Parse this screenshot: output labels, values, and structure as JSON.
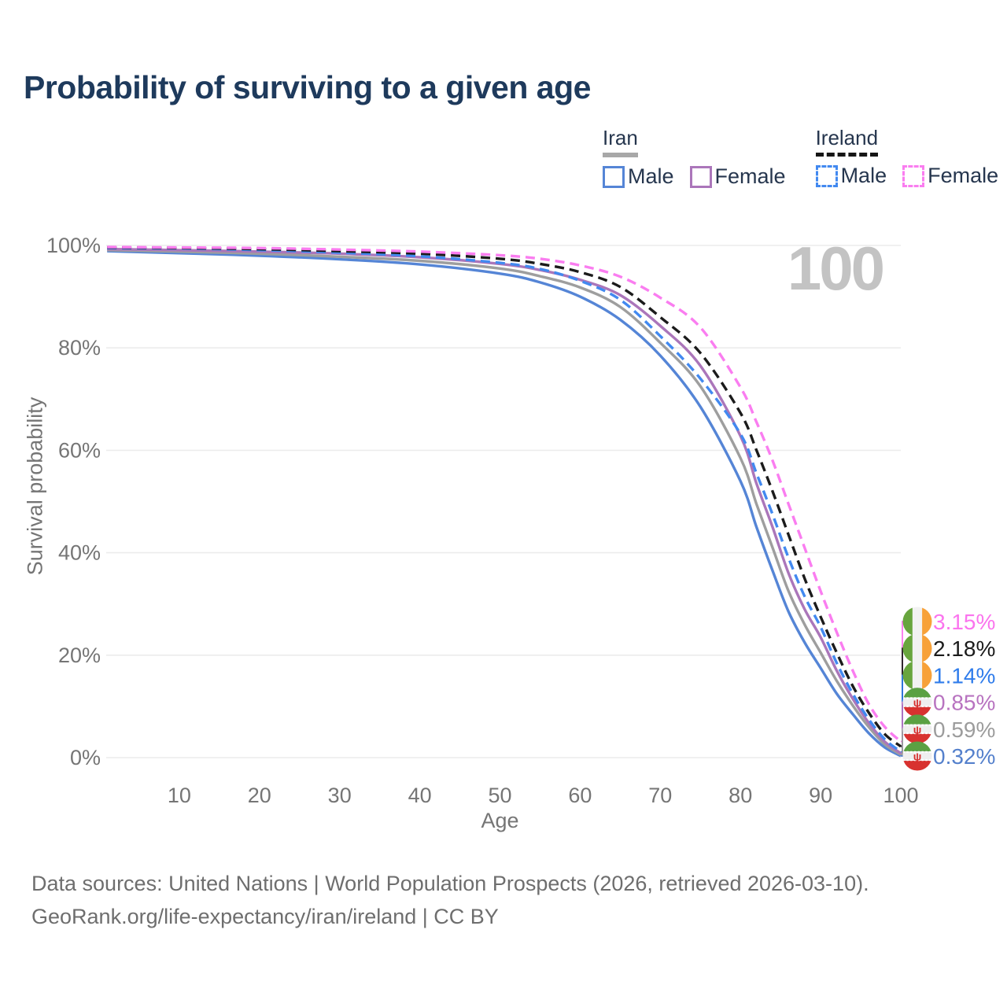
{
  "title": "Probability of surviving to a given age",
  "legend": {
    "groups": [
      {
        "name": "Iran",
        "line_style": "solid",
        "underline_color": "#a8a8a8",
        "items": [
          {
            "label": "Male",
            "color": "#5585d6"
          },
          {
            "label": "Female",
            "color": "#ab76ba"
          }
        ]
      },
      {
        "name": "Ireland",
        "line_style": "dashed",
        "underline_color": "#161616",
        "items": [
          {
            "label": "Male",
            "color": "#4289f0"
          },
          {
            "label": "Female",
            "color": "#fa7df0"
          }
        ]
      }
    ]
  },
  "chart_data": {
    "type": "line",
    "title": "Probability of surviving to a given age",
    "xlabel": "Age",
    "ylabel": "Survival probability",
    "xlim": [
      0,
      100
    ],
    "ylim": [
      0,
      100
    ],
    "grid": "horizontal",
    "hover_age": "100",
    "x_ticks": [
      10,
      20,
      30,
      40,
      50,
      60,
      70,
      80,
      90,
      100
    ],
    "y_ticks": [
      {
        "v": 0,
        "label": "0%"
      },
      {
        "v": 20,
        "label": "20%"
      },
      {
        "v": 40,
        "label": "40%"
      },
      {
        "v": 60,
        "label": "60%"
      },
      {
        "v": 80,
        "label": "80%"
      },
      {
        "v": 100,
        "label": "100%"
      }
    ],
    "ages": [
      1,
      10,
      20,
      30,
      40,
      50,
      55,
      60,
      65,
      70,
      75,
      80,
      82,
      84,
      86,
      88,
      90,
      92,
      94,
      96,
      98,
      100
    ],
    "series": [
      {
        "id": "iran-male",
        "name": "Iran Male",
        "color": "#5585d6",
        "dash": false,
        "end_value": "0.32%",
        "values": [
          98.9,
          98.5,
          98.0,
          97.3,
          96.3,
          94.5,
          92.8,
          90.0,
          85.5,
          78.5,
          68.5,
          54.0,
          45.0,
          36.5,
          28.5,
          22.5,
          17.5,
          12.5,
          8.5,
          4.8,
          2.0,
          0.32
        ]
      },
      {
        "id": "iran-both",
        "name": "Iran",
        "color": "#9e9e9e",
        "dash": false,
        "end_value": "0.59%",
        "values": [
          99.1,
          98.8,
          98.4,
          97.8,
          97.0,
          95.5,
          94.0,
          91.8,
          88.0,
          81.0,
          72.5,
          58.5,
          49.5,
          41.0,
          32.5,
          26.0,
          20.5,
          15.0,
          10.2,
          6.0,
          2.6,
          0.59
        ]
      },
      {
        "id": "iran-female",
        "name": "Iran Female",
        "color": "#ab76ba",
        "dash": false,
        "end_value": "0.85%",
        "values": [
          99.3,
          99.1,
          98.8,
          98.4,
          97.7,
          96.4,
          95.2,
          93.3,
          90.3,
          84.3,
          76.5,
          62.8,
          53.5,
          45.0,
          36.0,
          29.0,
          23.5,
          17.0,
          11.5,
          6.8,
          3.1,
          0.85
        ]
      },
      {
        "id": "ireland-male",
        "name": "Ireland Male",
        "color": "#4289f0",
        "dash": true,
        "end_value": "1.14%",
        "values": [
          99.5,
          99.4,
          99.1,
          98.6,
          97.9,
          96.6,
          95.4,
          93.1,
          89.4,
          82.3,
          74.0,
          63.2,
          55.5,
          47.5,
          39.0,
          31.5,
          25.5,
          18.5,
          12.5,
          7.5,
          3.6,
          1.14
        ]
      },
      {
        "id": "ireland-both",
        "name": "Ireland",
        "color": "#1b1b1b",
        "dash": true,
        "end_value": "2.18%",
        "values": [
          99.6,
          99.5,
          99.3,
          98.9,
          98.4,
          97.4,
          96.4,
          94.8,
          91.9,
          86.0,
          79.0,
          67.3,
          60.0,
          52.0,
          43.5,
          35.0,
          27.5,
          20.5,
          14.0,
          8.8,
          4.6,
          2.18
        ]
      },
      {
        "id": "ireland-female",
        "name": "Ireland Female",
        "color": "#fa7df0",
        "dash": true,
        "end_value": "3.15%",
        "values": [
          99.7,
          99.6,
          99.5,
          99.2,
          98.8,
          98.1,
          97.4,
          96.1,
          93.9,
          89.8,
          84.0,
          72.3,
          65.5,
          58.0,
          49.5,
          41.0,
          32.5,
          24.5,
          17.0,
          10.5,
          6.0,
          3.15
        ]
      }
    ],
    "end_labels": [
      {
        "series": "ireland-female",
        "value": "3.15%",
        "flag": "ireland",
        "color": "#fb74ee"
      },
      {
        "series": "ireland-both",
        "value": "2.18%",
        "flag": "ireland",
        "color": "#1b1b1b"
      },
      {
        "series": "ireland-male",
        "value": "1.14%",
        "flag": "ireland",
        "color": "#2f7ceb"
      },
      {
        "series": "iran-female",
        "value": "0.85%",
        "flag": "iran",
        "color": "#b873c0"
      },
      {
        "series": "iran-both",
        "value": "0.59%",
        "flag": "iran",
        "color": "#9c9c9c"
      },
      {
        "series": "iran-male",
        "value": "0.32%",
        "flag": "iran",
        "color": "#5480cc"
      }
    ],
    "flag_colors": {
      "ireland": {
        "green": "#68a53e",
        "white": "#f2f2f2",
        "orange": "#f7a139"
      },
      "iran": {
        "green": "#5ba143",
        "white": "#efefef",
        "red": "#d8322f",
        "emblem": "#d6302e"
      }
    }
  },
  "footer": {
    "line1": "Data sources: United Nations | World Population Prospects (2026, retrieved 2026-03-10).",
    "line2": "GeoRank.org/life-expectancy/iran/ireland | CC BY"
  }
}
